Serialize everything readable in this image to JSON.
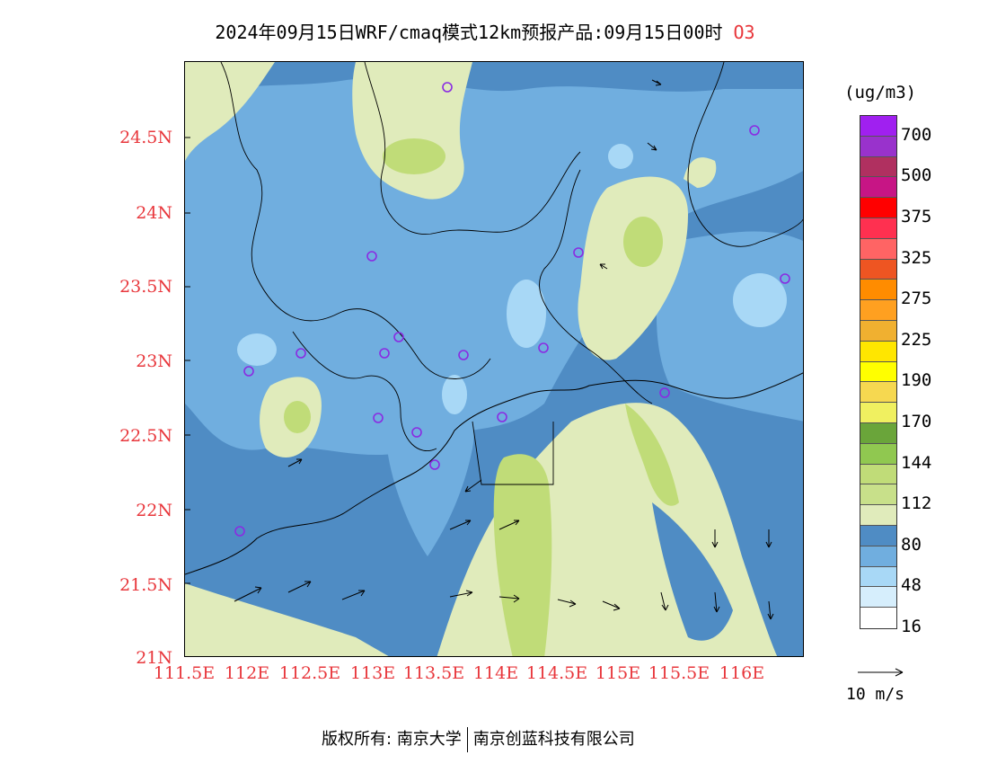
{
  "title": "2024年09月15日WRF/cmaq模式12km预报产品:09月15日00时",
  "species": "O3",
  "unit": "(ug/m3)",
  "lat_ticks": [
    "24.5N",
    "24N",
    "23.5N",
    "23N",
    "22.5N",
    "22N",
    "21.5N",
    "21N"
  ],
  "lon_ticks": [
    "111.5E",
    "112E",
    "112.5E",
    "113E",
    "113.5E",
    "114E",
    "114.5E",
    "115E",
    "115.5E",
    "116E"
  ],
  "legend": {
    "labels": [
      "700",
      "500",
      "375",
      "325",
      "275",
      "225",
      "190",
      "170",
      "144",
      "112",
      "80",
      "48",
      "16"
    ],
    "colors": [
      "#a020f0",
      "#9932cc",
      "#b03060",
      "#c71585",
      "#ff0000",
      "#ff3050",
      "#ff6464",
      "#ee5522",
      "#ff8c00",
      "#ffa020",
      "#f0b030",
      "#ffe600",
      "#ffff00",
      "#f6d850",
      "#f0f060",
      "#6aa53a",
      "#90c850",
      "#c0dc78",
      "#c8e08a",
      "#e0ebbb",
      "#4f8cc4",
      "#70aedf",
      "#a8d8f6",
      "#d6eefc",
      "#ffffff"
    ]
  },
  "wind_reference": "10 m/s",
  "footer": {
    "left": "版权所有: 南京大学",
    "right": "南京创蓝科技有限公司"
  },
  "colors": {
    "tick_label": "#e8373c",
    "low": "#4f8cc4",
    "mid": "#70aedf",
    "light": "#a8d8f6",
    "green_pale": "#e0ebbb",
    "green": "#c0dc78"
  }
}
